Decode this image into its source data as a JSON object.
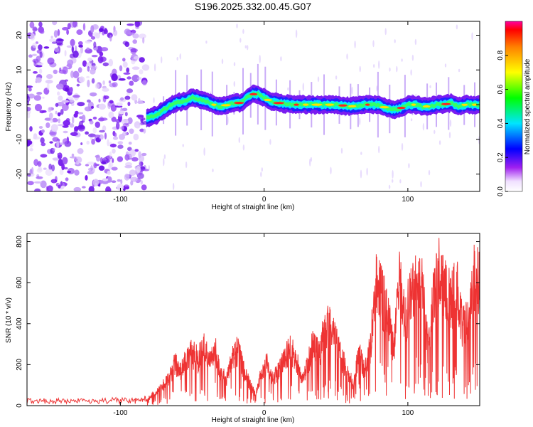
{
  "title": "S196.2025.332.00.45.G07",
  "chart_data": [
    {
      "type": "heatmap",
      "xlabel": "Height of straight line (km)",
      "ylabel": "Frequency (Hz)",
      "xlim": [
        -165,
        150
      ],
      "ylim": [
        -25,
        24
      ],
      "xticks": [
        -100,
        0,
        100
      ],
      "xtick_labels": [
        "-100",
        "0",
        "100"
      ],
      "yticks": [
        20,
        10,
        0,
        -10,
        -20
      ],
      "ytick_labels": [
        "20",
        "10",
        "0",
        "-10",
        "-20"
      ],
      "noise_region_x": [
        -165,
        -82
      ],
      "ridge": {
        "x": [
          -82,
          -75,
          -68,
          -62,
          -55,
          -50,
          -45,
          -40,
          -35,
          -30,
          -25,
          -20,
          -16,
          -12,
          -8,
          -4,
          0,
          4,
          10,
          20,
          30,
          40,
          50,
          60,
          70,
          80,
          85,
          90,
          95,
          100,
          105,
          110,
          115,
          120,
          125,
          130,
          135,
          140,
          145,
          150
        ],
        "freq_hz": [
          -4,
          -3,
          -1,
          0.5,
          1,
          2,
          1.5,
          1,
          0,
          -0.5,
          0,
          0.5,
          0.5,
          2,
          3,
          3,
          2,
          1,
          0.5,
          0,
          0,
          0,
          0,
          -0.5,
          0,
          0,
          -1,
          -1.5,
          -1,
          0,
          0,
          -0.5,
          -0.5,
          0,
          0,
          0.5,
          -0.5,
          0,
          0,
          0
        ]
      },
      "colorbar": {
        "label": "Normalized spectral amplitude",
        "range": [
          0,
          1
        ],
        "ticks": [
          0.0,
          0.2,
          0.4,
          0.6,
          0.8
        ],
        "tick_labels": [
          "0.0",
          "0.2",
          "0.4",
          "0.6",
          "0.8"
        ]
      }
    },
    {
      "type": "line",
      "xlabel": "Height of straight line (km)",
      "ylabel": "SNR (10 * v/v)",
      "xlim": [
        -165,
        150
      ],
      "ylim": [
        0,
        840
      ],
      "xticks": [
        -100,
        0,
        100
      ],
      "xtick_labels": [
        "-100",
        "0",
        "100"
      ],
      "yticks": [
        0,
        200,
        400,
        600,
        800
      ],
      "ytick_labels": [
        "0",
        "200",
        "400",
        "600",
        "800"
      ],
      "color": "#ee3333",
      "series": [
        {
          "name": "SNR",
          "x": [
            -165,
            -150,
            -135,
            -120,
            -105,
            -90,
            -82,
            -78,
            -74,
            -70,
            -66,
            -62,
            -58,
            -54,
            -50,
            -46,
            -42,
            -38,
            -34,
            -30,
            -26,
            -22,
            -18,
            -14,
            -10,
            -6,
            -2,
            2,
            6,
            10,
            14,
            18,
            22,
            26,
            30,
            34,
            38,
            42,
            46,
            50,
            54,
            58,
            62,
            66,
            70,
            74,
            78,
            82,
            86,
            90,
            94,
            98,
            102,
            106,
            110,
            114,
            118,
            122,
            126,
            130,
            134,
            138,
            142,
            146,
            150
          ],
          "values": [
            25,
            22,
            24,
            20,
            25,
            23,
            30,
            60,
            80,
            120,
            160,
            240,
            200,
            260,
            300,
            260,
            340,
            240,
            320,
            180,
            150,
            280,
            320,
            200,
            120,
            60,
            180,
            240,
            150,
            200,
            260,
            320,
            280,
            140,
            220,
            360,
            300,
            420,
            460,
            380,
            260,
            200,
            120,
            300,
            200,
            340,
            700,
            620,
            560,
            300,
            740,
            480,
            640,
            700,
            660,
            320,
            620,
            760,
            700,
            580,
            680,
            440,
            500,
            720,
            740
          ]
        }
      ]
    }
  ]
}
